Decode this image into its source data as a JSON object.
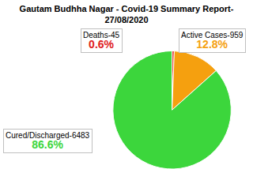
{
  "chart_data": {
    "type": "pie",
    "title": "Gautam Budhha Nagar - Covid-19 Summary Report-27/08/2020",
    "categories": [
      "Deaths-45",
      "Active Cases-959",
      "Cured/Discharged-6483"
    ],
    "values": [
      0.6,
      12.8,
      86.6
    ],
    "value_labels": [
      "0.6%",
      "12.8%",
      "86.6%"
    ],
    "colors": [
      "#e02020",
      "#f5a00f",
      "#3cd63c"
    ],
    "data_labels": true
  }
}
